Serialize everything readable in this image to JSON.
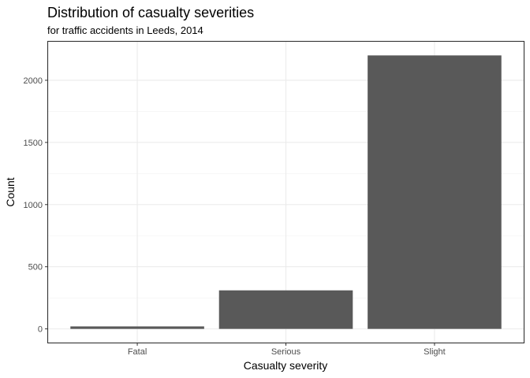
{
  "chart_data": {
    "type": "bar",
    "title": "Distribution of casualty severities",
    "subtitle": "for traffic accidents in Leeds, 2014",
    "xlabel": "Casualty severity",
    "ylabel": "Count",
    "categories": [
      "Fatal",
      "Serious",
      "Slight"
    ],
    "values": [
      20,
      310,
      2200
    ],
    "ylim": [
      -110,
      2310
    ],
    "yticks": [
      0,
      500,
      1000,
      1500,
      2000
    ],
    "ytick_labels": [
      "0",
      "500",
      "1000",
      "1500",
      "2000"
    ],
    "grid": true,
    "legend": "none",
    "bar_color": "#595959"
  }
}
